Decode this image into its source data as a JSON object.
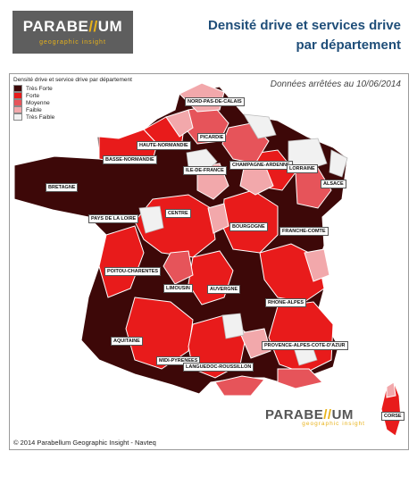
{
  "header": {
    "logo_brand_left": "PARABE",
    "logo_brand_slash": "//",
    "logo_brand_right": "UM",
    "logo_subtitle": "geographic insight",
    "title_line1": "Densité drive et services drive",
    "title_line2": "par département"
  },
  "legend": {
    "title": "Densité drive et service drive par département",
    "items": [
      {
        "label": "Très Forte",
        "color": "#3d0808"
      },
      {
        "label": "Forte",
        "color": "#e81b1b"
      },
      {
        "label": "Moyenne",
        "color": "#e6545a"
      },
      {
        "label": "Faible",
        "color": "#f2a8ab"
      },
      {
        "label": "Très Faible",
        "color": "#f1f1f1"
      }
    ]
  },
  "date_note": "Données arrêtées au 10/06/2014",
  "regions": [
    {
      "id": "nord-pas-de-calais",
      "label": "NORD-PAS-DE-CALAIS"
    },
    {
      "id": "picardie",
      "label": "PICARDIE"
    },
    {
      "id": "haute-normandie",
      "label": "HAUTE-NORMANDIE"
    },
    {
      "id": "basse-normandie",
      "label": "BASSE-NORMANDIE"
    },
    {
      "id": "ile-de-france",
      "label": "ILE-DE-FRANCE"
    },
    {
      "id": "champagne-ardenne",
      "label": "CHAMPAGNE-ARDENNE"
    },
    {
      "id": "lorraine",
      "label": "LORRAINE"
    },
    {
      "id": "alsace",
      "label": "ALSACE"
    },
    {
      "id": "bretagne",
      "label": "BRETAGNE"
    },
    {
      "id": "pays-de-la-loire",
      "label": "PAYS DE LA LOIRE"
    },
    {
      "id": "centre",
      "label": "CENTRE"
    },
    {
      "id": "bourgogne",
      "label": "BOURGOGNE"
    },
    {
      "id": "franche-comte",
      "label": "FRANCHE-COMTE"
    },
    {
      "id": "poitou-charentes",
      "label": "POITOU-CHARENTES"
    },
    {
      "id": "limousin",
      "label": "LIMOUSIN"
    },
    {
      "id": "auvergne",
      "label": "AUVERGNE"
    },
    {
      "id": "rhone-alpes",
      "label": "RHONE-ALPES"
    },
    {
      "id": "aquitaine",
      "label": "AQUITAINE"
    },
    {
      "id": "midi-pyrenees",
      "label": "MIDI-PYRENEES"
    },
    {
      "id": "languedoc-roussillon",
      "label": "LANGUEDOC-ROUSSILLON"
    },
    {
      "id": "provence-alpes-cote-dazur",
      "label": "PROVENCE-ALPES-COTE-D'AZUR"
    },
    {
      "id": "corse",
      "label": "CORSE"
    }
  ],
  "footer": {
    "copyright": "© 2014 Parabellum Geographic Insight - Navteq",
    "logo_brand_left": "PARABE",
    "logo_brand_slash": "//",
    "logo_brand_right": "UM",
    "logo_subtitle": "geographic insight"
  }
}
